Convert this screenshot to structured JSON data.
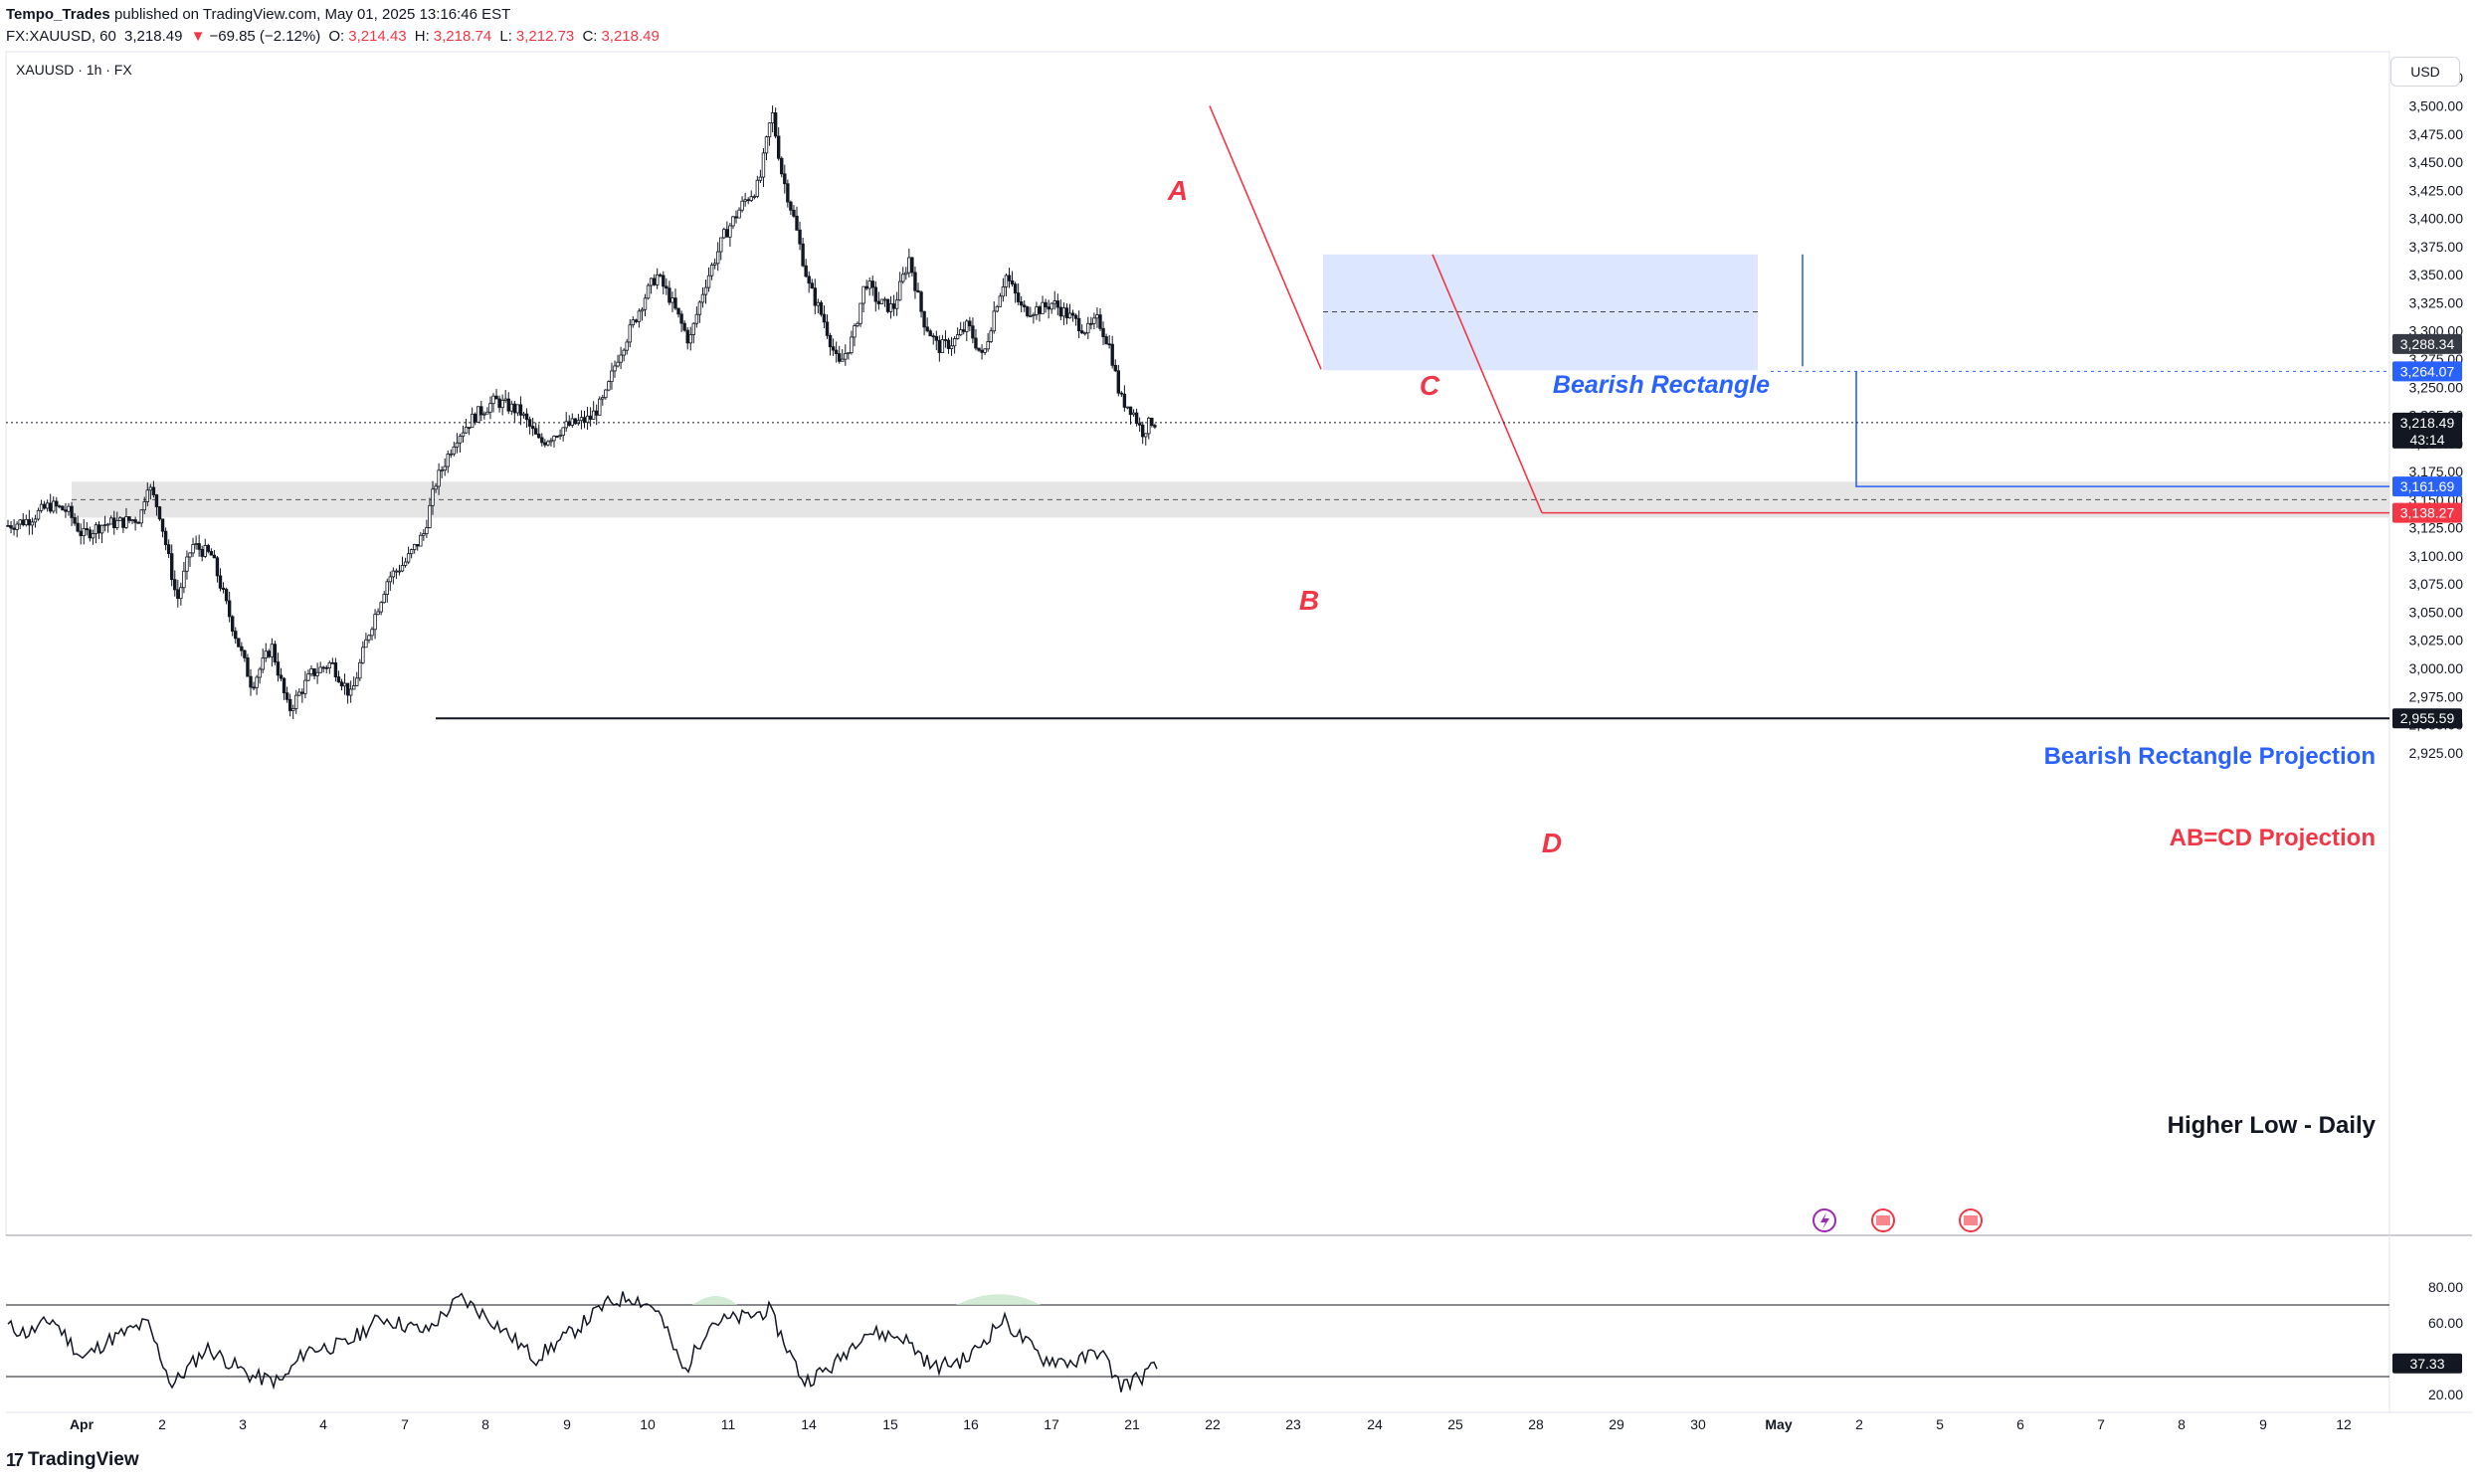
{
  "header": {
    "author": "Tempo_Trades",
    "published": "published on TradingView.com, May 01, 2025 13:16:46 EST",
    "symbol": "FX:XAUUSD, 60",
    "last": "3,218.49",
    "change_arrow": "▼",
    "change": "−69.85 (−2.12%)",
    "o_label": "O:",
    "o": "3,214.43",
    "h_label": "H:",
    "h": "3,218.74",
    "l_label": "L:",
    "l": "3,212.73",
    "c_label": "C:",
    "c": "3,218.49"
  },
  "chart_label": "XAUUSD · 1h · FX",
  "currency_button": "USD",
  "footer": {
    "logo_mark": "17",
    "logo_text": "TradingView"
  },
  "colors": {
    "red": "#f23645",
    "blue": "#2962ff",
    "up": "#ffffff",
    "down": "#131722",
    "rectangle_fill": "#dbe5ff",
    "zone_fill": "#e0e0e0"
  },
  "chart_data": [
    {
      "type": "candlestick",
      "symbol": "XAUUSD",
      "interval": "1h",
      "ylim": [
        2900,
        3550
      ],
      "y_ticks": [
        "3,525.00",
        "3,500.00",
        "3,475.00",
        "3,450.00",
        "3,425.00",
        "3,400.00",
        "3,375.00",
        "3,350.00",
        "3,325.00",
        "3,300.00",
        "3,275.00",
        "3,250.00",
        "3,225.00",
        "3,200.00",
        "3,175.00",
        "3,150.00",
        "3,125.00",
        "3,100.00",
        "3,075.00",
        "3,050.00",
        "3,025.00",
        "3,000.00",
        "2,975.00",
        "2,950.00",
        "2,925.00"
      ],
      "x_ticks": [
        "Apr",
        "2",
        "3",
        "4",
        "7",
        "8",
        "9",
        "10",
        "11",
        "14",
        "15",
        "16",
        "17",
        "21",
        "22",
        "23",
        "24",
        "25",
        "28",
        "29",
        "30",
        "May",
        "2",
        "5",
        "6",
        "7",
        "8",
        "9",
        "12"
      ],
      "price_path": [
        [
          0,
          3127
        ],
        [
          20,
          3132
        ],
        [
          42,
          3145
        ],
        [
          60,
          3140
        ],
        [
          75,
          3118
        ],
        [
          95,
          3128
        ],
        [
          115,
          3130
        ],
        [
          133,
          3134
        ],
        [
          140,
          3165
        ],
        [
          152,
          3140
        ],
        [
          170,
          3060
        ],
        [
          185,
          3110
        ],
        [
          205,
          3100
        ],
        [
          225,
          3040
        ],
        [
          245,
          2985
        ],
        [
          265,
          3020
        ],
        [
          282,
          2962
        ],
        [
          305,
          2995
        ],
        [
          325,
          3005
        ],
        [
          345,
          2975
        ],
        [
          362,
          3030
        ],
        [
          382,
          3080
        ],
        [
          400,
          3095
        ],
        [
          418,
          3120
        ],
        [
          430,
          3165
        ],
        [
          450,
          3205
        ],
        [
          470,
          3225
        ],
        [
          490,
          3238
        ],
        [
          515,
          3228
        ],
        [
          535,
          3200
        ],
        [
          560,
          3215
        ],
        [
          585,
          3222
        ],
        [
          600,
          3240
        ],
        [
          612,
          3275
        ],
        [
          625,
          3300
        ],
        [
          640,
          3330
        ],
        [
          652,
          3350
        ],
        [
          665,
          3330
        ],
        [
          685,
          3290
        ],
        [
          700,
          3340
        ],
        [
          720,
          3385
        ],
        [
          740,
          3415
        ],
        [
          755,
          3430
        ],
        [
          768,
          3495
        ],
        [
          778,
          3440
        ],
        [
          790,
          3400
        ],
        [
          805,
          3340
        ],
        [
          820,
          3310
        ],
        [
          835,
          3268
        ],
        [
          850,
          3295
        ],
        [
          862,
          3345
        ],
        [
          875,
          3325
        ],
        [
          890,
          3320
        ],
        [
          906,
          3365
        ],
        [
          920,
          3310
        ],
        [
          935,
          3285
        ],
        [
          950,
          3290
        ],
        [
          965,
          3305
        ],
        [
          980,
          3275
        ],
        [
          992,
          3320
        ],
        [
          1003,
          3350
        ],
        [
          1020,
          3318
        ],
        [
          1040,
          3320
        ],
        [
          1050,
          3325
        ],
        [
          1068,
          3312
        ],
        [
          1085,
          3300
        ],
        [
          1096,
          3310
        ],
        [
          1108,
          3285
        ],
        [
          1118,
          3240
        ],
        [
          1130,
          3230
        ],
        [
          1140,
          3210
        ],
        [
          1150,
          3220
        ],
        [
          1155,
          3218
        ]
      ],
      "last_price": "3,218.49",
      "countdown": "43:14",
      "price_badges": [
        "3,288.34",
        "3,264.07",
        "3,161.69",
        "3,138.27",
        "2,955.59"
      ],
      "pattern_points": [
        "A",
        "B",
        "C",
        "D"
      ],
      "annotations": [
        "Bearish Rectangle",
        "Bearish Rectangle Projection",
        "AB=CD Projection",
        "Higher Low - Daily"
      ],
      "levels": {
        "rectangle_top": 3368,
        "rectangle_bottom": 3265,
        "rectangle_mid": 3317,
        "zone_top": 3166,
        "zone_bottom": 3134,
        "zone_mid": 3150,
        "A": 3500,
        "B": 3266,
        "C": 3368,
        "D": 3138.27,
        "rect_projection": 3161.69,
        "abcd_projection": 3138.27,
        "higher_low": 2955.59,
        "target_marker": 3264.07
      }
    },
    {
      "type": "line",
      "name": "RSI",
      "ylim": [
        0,
        100
      ],
      "y_ticks": [
        "80.00",
        "60.00",
        "20.00"
      ],
      "bands": [
        70,
        30
      ],
      "last_value": "37.33",
      "values_path": [
        [
          0,
          58
        ],
        [
          20,
          54
        ],
        [
          45,
          62
        ],
        [
          75,
          40
        ],
        [
          100,
          50
        ],
        [
          140,
          60
        ],
        [
          165,
          25
        ],
        [
          200,
          46
        ],
        [
          245,
          30
        ],
        [
          275,
          27
        ],
        [
          300,
          45
        ],
        [
          340,
          48
        ],
        [
          375,
          63
        ],
        [
          420,
          55
        ],
        [
          455,
          74
        ],
        [
          490,
          60
        ],
        [
          530,
          40
        ],
        [
          570,
          56
        ],
        [
          600,
          70
        ],
        [
          625,
          75
        ],
        [
          652,
          68
        ],
        [
          680,
          32
        ],
        [
          705,
          60
        ],
        [
          740,
          63
        ],
        [
          765,
          67
        ],
        [
          800,
          27
        ],
        [
          830,
          36
        ],
        [
          860,
          55
        ],
        [
          900,
          52
        ],
        [
          930,
          35
        ],
        [
          965,
          40
        ],
        [
          1000,
          62
        ],
        [
          1040,
          40
        ],
        [
          1075,
          38
        ],
        [
          1098,
          45
        ],
        [
          1118,
          25
        ],
        [
          1140,
          30
        ],
        [
          1155,
          36
        ]
      ]
    }
  ]
}
